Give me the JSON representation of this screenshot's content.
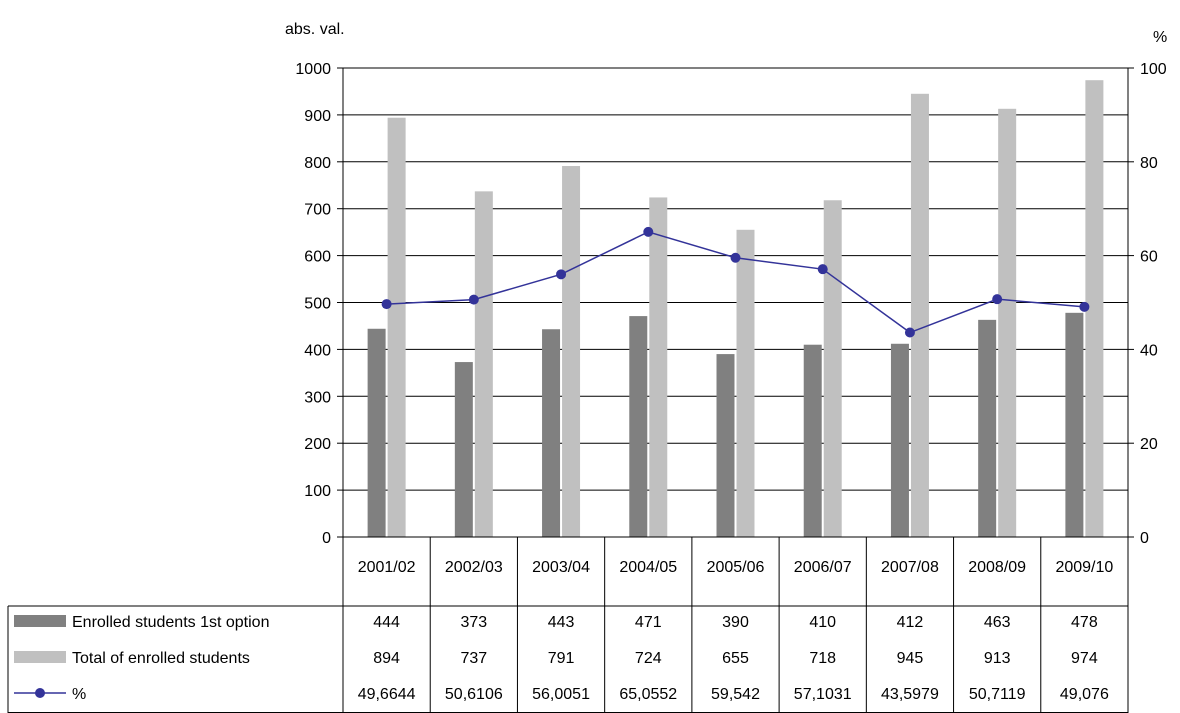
{
  "chart_data": {
    "type": "bar",
    "title": "",
    "ylabel_left": "abs. val.",
    "ylabel_right": "%",
    "ylim_left": [
      0,
      1000
    ],
    "yticks_left": [
      "0",
      "100",
      "200",
      "300",
      "400",
      "500",
      "600",
      "700",
      "800",
      "900",
      "1000"
    ],
    "ylim_right": [
      0,
      100
    ],
    "yticks_right": [
      "0",
      "20",
      "40",
      "60",
      "80",
      "100"
    ],
    "grid": true,
    "categories": [
      "2001/02",
      "2002/03",
      "2003/04",
      "2004/05",
      "2005/06",
      "2006/07",
      "2007/08",
      "2008/09",
      "2009/10"
    ],
    "series": [
      {
        "name": "Enrolled students 1st option",
        "type": "bar",
        "axis": "left",
        "color": "#808080",
        "values": [
          444,
          373,
          443,
          471,
          390,
          410,
          412,
          463,
          478
        ],
        "labels": [
          "444",
          "373",
          "443",
          "471",
          "390",
          "410",
          "412",
          "463",
          "478"
        ]
      },
      {
        "name": "Total of enrolled students",
        "type": "bar",
        "axis": "left",
        "color": "#c0c0c0",
        "values": [
          894,
          737,
          791,
          724,
          655,
          718,
          945,
          913,
          974
        ],
        "labels": [
          "894",
          "737",
          "791",
          "724",
          "655",
          "718",
          "945",
          "913",
          "974"
        ]
      },
      {
        "name": "%",
        "type": "line",
        "axis": "right",
        "color": "#333399",
        "values": [
          49.6644,
          50.6106,
          56.0051,
          65.0552,
          59.542,
          57.1031,
          43.5979,
          50.7119,
          49.076
        ],
        "labels": [
          "49,6644",
          "50,6106",
          "56,0051",
          "65,0552",
          "59,542",
          "57,1031",
          "43,5979",
          "50,7119",
          "49,076"
        ]
      }
    ],
    "legend": "data-table"
  }
}
